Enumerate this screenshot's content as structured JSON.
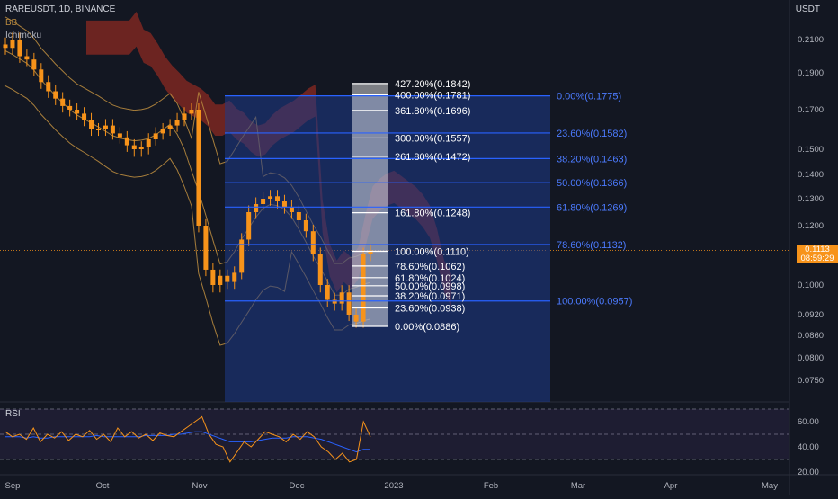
{
  "header": {
    "symbol_line": "RAREUSDT, 1D, BINANCE",
    "indicator1": "BB",
    "indicator2": "Ichimoku"
  },
  "axis": {
    "currency": "USDT",
    "price_ticks": [
      "0.2100",
      "0.1900",
      "0.1700",
      "0.1500",
      "0.1400",
      "0.1300",
      "0.1200",
      "0.1000",
      "0.0920",
      "0.0860",
      "0.0800",
      "0.0750"
    ],
    "time_ticks": [
      "Sep",
      "Oct",
      "Nov",
      "Dec",
      "2023",
      "Feb",
      "Mar",
      "Apr",
      "May"
    ],
    "rsi_ticks": [
      "60.00",
      "40.00",
      "20.00"
    ]
  },
  "price_box": {
    "price": "0.1113",
    "countdown": "08:59:29"
  },
  "rsi_label": "RSI",
  "colors": {
    "background": "#131722",
    "candle": "#f7931a",
    "cloud": "#8b2a22",
    "fib_blue": "#2962ff",
    "fib_zone": "#1e3a8a",
    "fib_white": "#ffffff",
    "bb": "#b8893e",
    "rsi_line": "#f7931a",
    "rsi_ma": "#2962ff"
  },
  "chart_data": [
    {
      "type": "candlestick",
      "title": "RAREUSDT, 1D, BINANCE",
      "ylabel": "USDT",
      "x_labels": [
        "Sep",
        "Oct",
        "Nov",
        "Dec",
        "2023",
        "Feb",
        "Mar",
        "Apr",
        "May"
      ],
      "current_price": 0.1113,
      "close_series": [
        0.205,
        0.21,
        0.2,
        0.198,
        0.192,
        0.185,
        0.18,
        0.176,
        0.172,
        0.17,
        0.168,
        0.165,
        0.16,
        0.16,
        0.162,
        0.158,
        0.156,
        0.152,
        0.15,
        0.151,
        0.155,
        0.158,
        0.16,
        0.162,
        0.165,
        0.168,
        0.17,
        0.12,
        0.105,
        0.1,
        0.103,
        0.101,
        0.104,
        0.115,
        0.125,
        0.128,
        0.13,
        0.131,
        0.129,
        0.127,
        0.125,
        0.122,
        0.118,
        0.11,
        0.1,
        0.096,
        0.095,
        0.098,
        0.092,
        0.09,
        0.11,
        0.1113
      ]
    },
    {
      "type": "fibonacci_retracement",
      "name": "blue",
      "levels": [
        {
          "label": "0.00%(0.1775)",
          "price": 0.1775
        },
        {
          "label": "23.60%(0.1582)",
          "price": 0.1582
        },
        {
          "label": "38.20%(0.1463)",
          "price": 0.1463
        },
        {
          "label": "50.00%(0.1366)",
          "price": 0.1366
        },
        {
          "label": "61.80%(0.1269)",
          "price": 0.1269
        },
        {
          "label": "78.60%(0.1132)",
          "price": 0.1132
        },
        {
          "label": "100.00%(0.0957)",
          "price": 0.0957
        }
      ]
    },
    {
      "type": "fibonacci_extension",
      "name": "white",
      "levels": [
        {
          "label": "427.20%(0.1842)",
          "price": 0.1842
        },
        {
          "label": "400.00%(0.1781)",
          "price": 0.1781
        },
        {
          "label": "361.80%(0.1696)",
          "price": 0.1696
        },
        {
          "label": "300.00%(0.1557)",
          "price": 0.1557
        },
        {
          "label": "261.80%(0.1472)",
          "price": 0.1472
        },
        {
          "label": "161.80%(0.1248)",
          "price": 0.1248
        },
        {
          "label": "100.00%(0.1110)",
          "price": 0.111
        },
        {
          "label": "78.60%(0.1062)",
          "price": 0.1062
        },
        {
          "label": "61.80%(0.1024)",
          "price": 0.1024
        },
        {
          "label": "50.00%(0.0998)",
          "price": 0.0998
        },
        {
          "label": "38.20%(0.0971)",
          "price": 0.0971
        },
        {
          "label": "23.60%(0.0938)",
          "price": 0.0938
        },
        {
          "label": "0.00%(0.0886)",
          "price": 0.0886
        }
      ]
    },
    {
      "type": "line",
      "title": "RSI",
      "ylim": [
        20,
        70
      ],
      "values": [
        52,
        48,
        50,
        46,
        55,
        44,
        50,
        47,
        52,
        45,
        50,
        48,
        53,
        46,
        50,
        44,
        55,
        48,
        52,
        47,
        50,
        45,
        51,
        49,
        48,
        52,
        56,
        60,
        64,
        50,
        42,
        40,
        28,
        36,
        44,
        40,
        46,
        52,
        50,
        48,
        44,
        50,
        46,
        52,
        48,
        40,
        36,
        30,
        35,
        28,
        30,
        60,
        48
      ],
      "ma_values": [
        48,
        48,
        48,
        47,
        48,
        47,
        47,
        48,
        48,
        48,
        48,
        48,
        48,
        49,
        48,
        48,
        48,
        48,
        48,
        48,
        49,
        49,
        49,
        49,
        50,
        50,
        51,
        52,
        52,
        50,
        48,
        46,
        44,
        44,
        44,
        44,
        45,
        46,
        47,
        47,
        47,
        48,
        48,
        48,
        47,
        46,
        44,
        42,
        40,
        38,
        36,
        38,
        38
      ]
    }
  ]
}
